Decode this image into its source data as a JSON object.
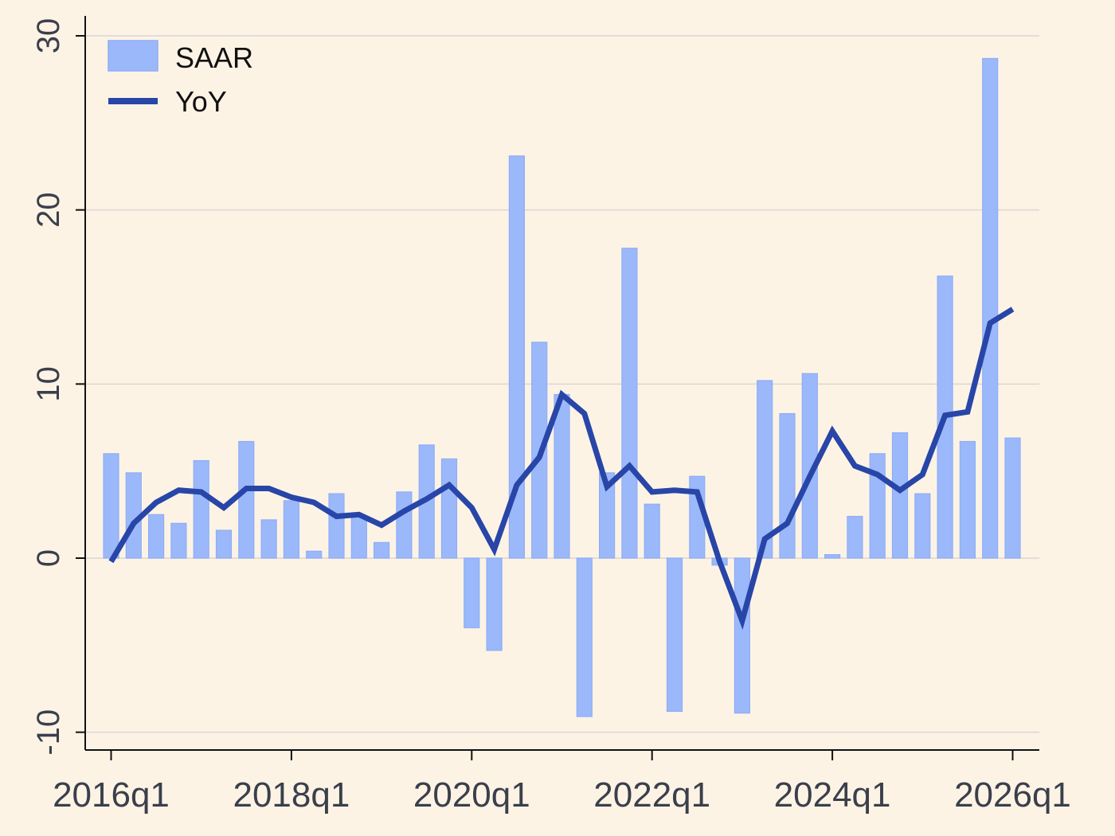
{
  "chart_data": {
    "type": "bar",
    "x_start": "2016q1",
    "x_ticks": [
      "2016q1",
      "2018q1",
      "2020q1",
      "2022q1",
      "2024q1",
      "2026q1"
    ],
    "y_ticks": [
      "-10",
      "0",
      "10",
      "20",
      "30"
    ],
    "ylim": [
      -10,
      30
    ],
    "grid": true,
    "legend_position": "top-left",
    "series": [
      {
        "name": "SAAR",
        "kind": "bar",
        "color": "#9bb8fa",
        "values": [
          6.0,
          4.9,
          2.5,
          2.0,
          5.6,
          1.6,
          6.7,
          2.2,
          3.3,
          0.4,
          3.7,
          2.4,
          0.9,
          3.8,
          6.5,
          5.7,
          -4.0,
          -5.3,
          23.1,
          12.4,
          9.4,
          -9.1,
          4.9,
          17.8,
          3.1,
          -8.8,
          4.7,
          -0.4,
          -8.9,
          10.2,
          8.3,
          10.6,
          0.2,
          2.4,
          6.0,
          7.2,
          3.7,
          16.2,
          6.7,
          28.7,
          6.9
        ]
      },
      {
        "name": "YoY",
        "kind": "line",
        "color": "#2845a8",
        "values": [
          -0.2,
          2.0,
          3.2,
          3.9,
          3.8,
          2.9,
          4.0,
          4.0,
          3.5,
          3.2,
          2.4,
          2.5,
          1.9,
          2.7,
          3.4,
          4.2,
          2.9,
          0.5,
          4.2,
          5.8,
          9.4,
          8.3,
          4.1,
          5.3,
          3.8,
          3.9,
          3.8,
          -0.2,
          -3.6,
          1.1,
          2.0,
          4.7,
          7.3,
          5.3,
          4.8,
          3.9,
          4.8,
          8.2,
          8.4,
          13.5,
          14.3
        ]
      }
    ]
  }
}
